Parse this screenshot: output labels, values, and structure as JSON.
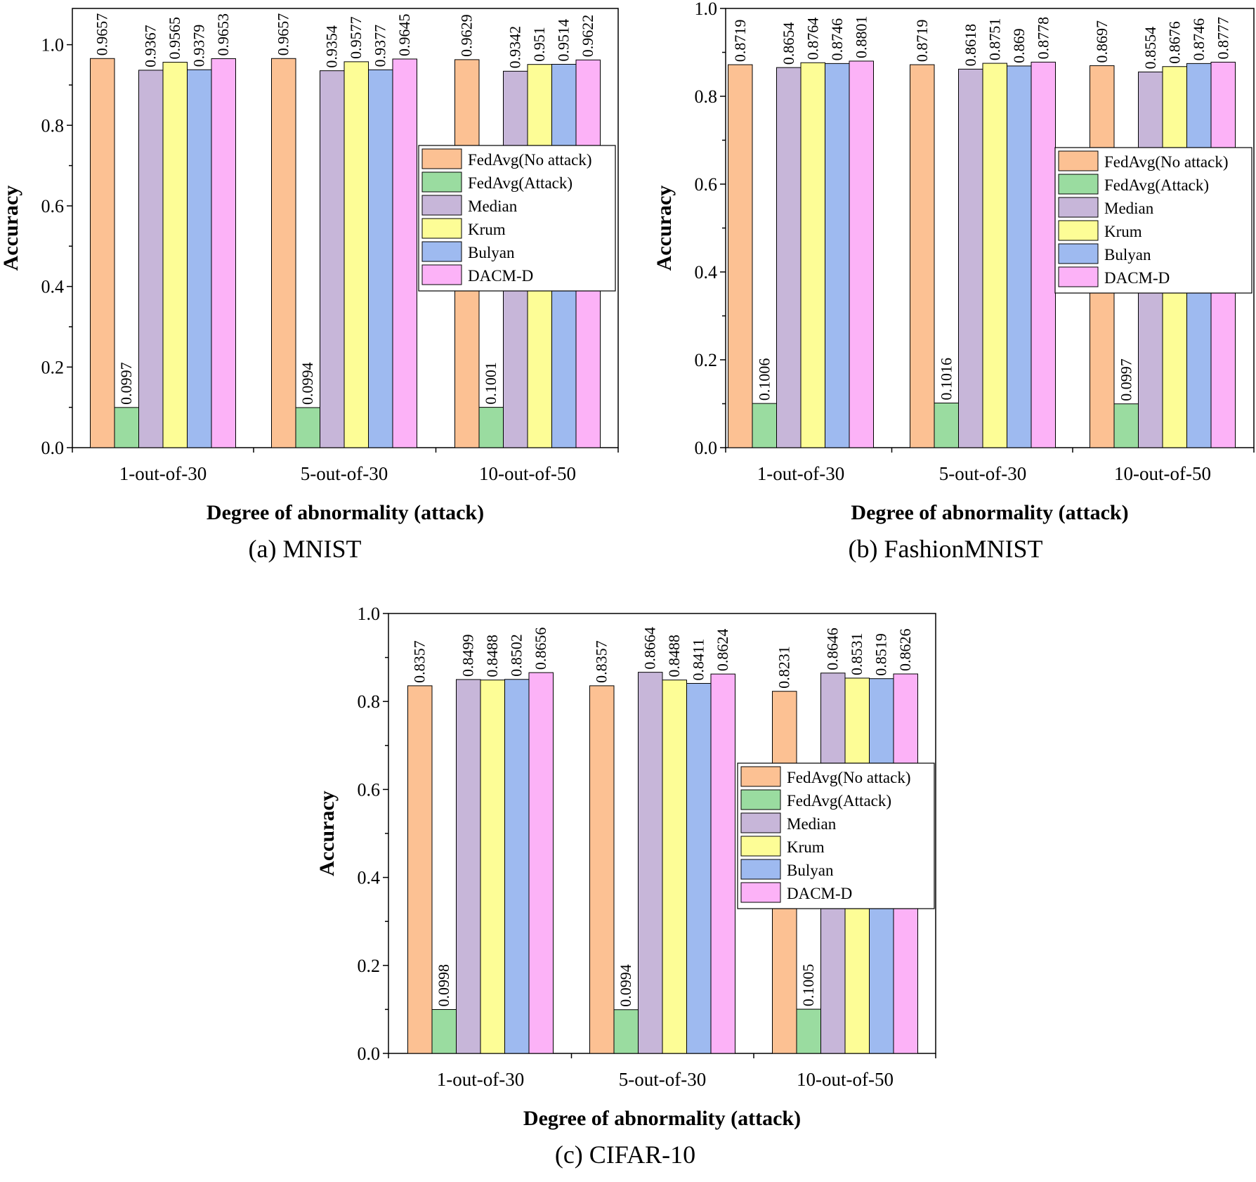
{
  "series_names": [
    "FedAvg(No attack)",
    "FedAvg(Attack)",
    "Median",
    "Krum",
    "Bulyan",
    "DACM-D"
  ],
  "series_colors": [
    "#fcc193",
    "#9adca0",
    "#c7b6d9",
    "#fdfd96",
    "#9ebaf0",
    "#fcb2f7"
  ],
  "chart_data": [
    {
      "type": "bar",
      "caption": "(a) MNIST",
      "xlabel": "Degree of abnormality (attack)",
      "ylabel": "Accuracy",
      "ylim": [
        0,
        1.09
      ],
      "yticks": [
        "0.0",
        "0.2",
        "0.4",
        "0.6",
        "0.8",
        "1.0"
      ],
      "categories": [
        "1-out-of-30",
        "5-out-of-30",
        "10-out-of-50"
      ],
      "legend_position": "right-middle",
      "series": [
        {
          "name": "FedAvg(No attack)",
          "values": [
            0.9657,
            0.9657,
            0.9629
          ],
          "labels": [
            "0.9657",
            "0.9657",
            "0.9629"
          ]
        },
        {
          "name": "FedAvg(Attack)",
          "values": [
            0.0997,
            0.0994,
            0.1001
          ],
          "labels": [
            "0.0997",
            "0.0994",
            "0.1001"
          ]
        },
        {
          "name": "Median",
          "values": [
            0.9367,
            0.9354,
            0.9342
          ],
          "labels": [
            "0.9367",
            "0.9354",
            "0.9342"
          ]
        },
        {
          "name": "Krum",
          "values": [
            0.9565,
            0.9577,
            0.951
          ],
          "labels": [
            "0.9565",
            "0.9577",
            "0.951"
          ]
        },
        {
          "name": "Bulyan",
          "values": [
            0.9379,
            0.9377,
            0.9514
          ],
          "labels": [
            "0.9379",
            "0.9377",
            "0.9514"
          ]
        },
        {
          "name": "DACM-D",
          "values": [
            0.9653,
            0.9645,
            0.9622
          ],
          "labels": [
            "0.9653",
            "0.9645",
            "0.9622"
          ]
        }
      ]
    },
    {
      "type": "bar",
      "caption": "(b) FashionMNIST",
      "xlabel": "Degree of abnormality (attack)",
      "ylabel": "Accuracy",
      "ylim": [
        0,
        1.0
      ],
      "yticks": [
        "0.0",
        "0.2",
        "0.4",
        "0.6",
        "0.8",
        "1.0"
      ],
      "categories": [
        "1-out-of-30",
        "5-out-of-30",
        "10-out-of-50"
      ],
      "legend_position": "right-middle",
      "series": [
        {
          "name": "FedAvg(No attack)",
          "values": [
            0.8719,
            0.8719,
            0.8697
          ],
          "labels": [
            "0.8719",
            "0.8719",
            "0.8697"
          ]
        },
        {
          "name": "FedAvg(Attack)",
          "values": [
            0.1006,
            0.1016,
            0.0997
          ],
          "labels": [
            "0.1006",
            "0.1016",
            "0.0997"
          ]
        },
        {
          "name": "Median",
          "values": [
            0.8654,
            0.8618,
            0.8554
          ],
          "labels": [
            "0.8654",
            "0.8618",
            "0.8554"
          ]
        },
        {
          "name": "Krum",
          "values": [
            0.8764,
            0.8751,
            0.8676
          ],
          "labels": [
            "0.8764",
            "0.8751",
            "0.8676"
          ]
        },
        {
          "name": "Bulyan",
          "values": [
            0.8746,
            0.869,
            0.8746
          ],
          "labels": [
            "0.8746",
            "0.869",
            "0.8746"
          ]
        },
        {
          "name": "DACM-D",
          "values": [
            0.8801,
            0.8778,
            0.8777
          ],
          "labels": [
            "0.8801",
            "0.8778",
            "0.8777"
          ]
        }
      ]
    },
    {
      "type": "bar",
      "caption": "(c) CIFAR-10",
      "xlabel": "Degree of abnormality (attack)",
      "ylabel": "Accuracy",
      "ylim": [
        0,
        1.0
      ],
      "yticks": [
        "0.0",
        "0.2",
        "0.4",
        "0.6",
        "0.8",
        "1.0"
      ],
      "categories": [
        "1-out-of-30",
        "5-out-of-30",
        "10-out-of-50"
      ],
      "legend_position": "right-middle",
      "series": [
        {
          "name": "FedAvg(No attack)",
          "values": [
            0.8357,
            0.8357,
            0.8231
          ],
          "labels": [
            "0.8357",
            "0.8357",
            "0.8231"
          ]
        },
        {
          "name": "FedAvg(Attack)",
          "values": [
            0.0998,
            0.0994,
            0.1005
          ],
          "labels": [
            "0.0998",
            "0.0994",
            "0.1005"
          ]
        },
        {
          "name": "Median",
          "values": [
            0.8499,
            0.8664,
            0.8646
          ],
          "labels": [
            "0.8499",
            "0.8664",
            "0.8646"
          ]
        },
        {
          "name": "Krum",
          "values": [
            0.8488,
            0.8488,
            0.8531
          ],
          "labels": [
            "0.8488",
            "0.8488",
            "0.8531"
          ]
        },
        {
          "name": "Bulyan",
          "values": [
            0.8502,
            0.8411,
            0.8519
          ],
          "labels": [
            "0.8502",
            "0.8411",
            "0.8519"
          ]
        },
        {
          "name": "DACM-D",
          "values": [
            0.8656,
            0.8624,
            0.8626
          ],
          "labels": [
            "0.8656",
            "0.8624",
            "0.8626"
          ]
        }
      ]
    }
  ]
}
